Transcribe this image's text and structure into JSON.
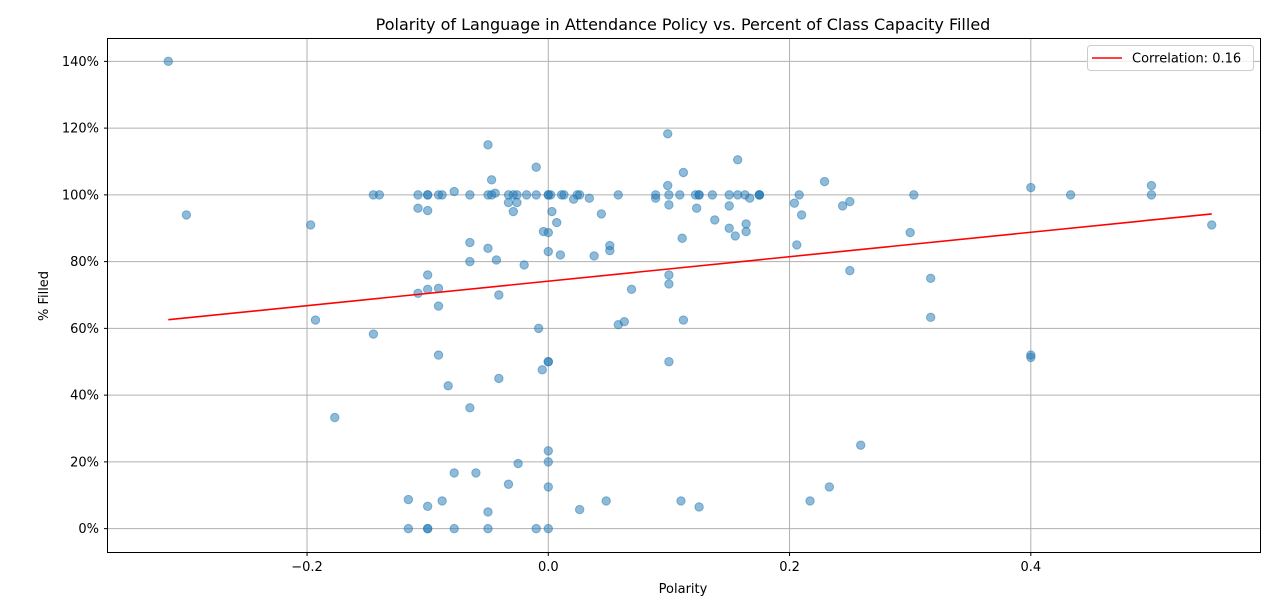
{
  "chart_data": {
    "type": "scatter",
    "title": "Polarity of Language in Attendance Policy vs. Percent of Class Capacity Filled",
    "xlabel": "Polarity",
    "ylabel": "% Filled",
    "xlim": [
      -0.365,
      0.59
    ],
    "ylim": [
      -0.07,
      1.467
    ],
    "x_ticks": [
      -0.2,
      0.0,
      0.2,
      0.4
    ],
    "x_tick_labels": [
      "−0.2",
      "0.0",
      "0.2",
      "0.4"
    ],
    "y_ticks": [
      0,
      0.2,
      0.4,
      0.6,
      0.8,
      1.0,
      1.2,
      1.4
    ],
    "y_tick_labels": [
      "0%",
      "20%",
      "40%",
      "60%",
      "80%",
      "100%",
      "120%",
      "140%"
    ],
    "grid": true,
    "legend": {
      "placement": "top-right",
      "entries": [
        {
          "label": "Correlation: 0.16",
          "color": "#ff0000",
          "kind": "line"
        }
      ]
    },
    "colors": {
      "points": "#1f77b4",
      "trend": "#ff0000"
    },
    "series": [
      {
        "kind": "points",
        "points": [
          [
            -0.315,
            1.4
          ],
          [
            -0.3,
            0.94
          ],
          [
            -0.197,
            0.91
          ],
          [
            -0.193,
            0.625
          ],
          [
            -0.177,
            0.333
          ],
          [
            -0.145,
            1.0
          ],
          [
            -0.145,
            0.583
          ],
          [
            -0.14,
            1.0
          ],
          [
            -0.116,
            0.087
          ],
          [
            -0.116,
            0.0
          ],
          [
            -0.108,
            1.0
          ],
          [
            -0.108,
            0.96
          ],
          [
            -0.108,
            0.705
          ],
          [
            -0.1,
            1.0
          ],
          [
            -0.1,
            1.0
          ],
          [
            -0.1,
            0.953
          ],
          [
            -0.1,
            0.76
          ],
          [
            -0.1,
            0.717
          ],
          [
            -0.1,
            0.067
          ],
          [
            -0.1,
            0.0
          ],
          [
            -0.1,
            0.0
          ],
          [
            -0.091,
            1.0
          ],
          [
            -0.091,
            0.72
          ],
          [
            -0.091,
            0.667
          ],
          [
            -0.091,
            0.52
          ],
          [
            -0.088,
            1.0
          ],
          [
            -0.088,
            0.083
          ],
          [
            -0.083,
            0.428
          ],
          [
            -0.078,
            1.01
          ],
          [
            -0.078,
            0.167
          ],
          [
            -0.078,
            0.0
          ],
          [
            -0.065,
            1.0
          ],
          [
            -0.065,
            0.857
          ],
          [
            -0.065,
            0.8
          ],
          [
            -0.065,
            0.362
          ],
          [
            -0.06,
            0.167
          ],
          [
            -0.05,
            1.15
          ],
          [
            -0.05,
            1.0
          ],
          [
            -0.05,
            0.84
          ],
          [
            -0.05,
            0.05
          ],
          [
            -0.05,
            0.0
          ],
          [
            -0.047,
            1.045
          ],
          [
            -0.047,
            1.0
          ],
          [
            -0.044,
            1.005
          ],
          [
            -0.043,
            0.805
          ],
          [
            -0.041,
            0.7
          ],
          [
            -0.041,
            0.45
          ],
          [
            -0.033,
            1.0
          ],
          [
            -0.033,
            0.977
          ],
          [
            -0.033,
            0.133
          ],
          [
            -0.029,
            1.0
          ],
          [
            -0.029,
            0.95
          ],
          [
            -0.026,
            1.0
          ],
          [
            -0.026,
            0.977
          ],
          [
            -0.025,
            0.195
          ],
          [
            -0.02,
            0.79
          ],
          [
            -0.018,
            1.0
          ],
          [
            -0.01,
            1.083
          ],
          [
            -0.01,
            1.0
          ],
          [
            -0.01,
            0.0
          ],
          [
            -0.008,
            0.6
          ],
          [
            -0.005,
            0.476
          ],
          [
            -0.004,
            0.89
          ],
          [
            0.0,
            1.0
          ],
          [
            0.0,
            1.0
          ],
          [
            0.0,
            0.887
          ],
          [
            0.0,
            0.83
          ],
          [
            0.0,
            0.5
          ],
          [
            0.0,
            0.5
          ],
          [
            0.0,
            0.233
          ],
          [
            0.0,
            0.2
          ],
          [
            0.0,
            0.125
          ],
          [
            0.0,
            0.0
          ],
          [
            0.002,
            1.0
          ],
          [
            0.003,
            0.95
          ],
          [
            0.007,
            0.917
          ],
          [
            0.01,
            0.82
          ],
          [
            0.011,
            1.0
          ],
          [
            0.013,
            1.0
          ],
          [
            0.021,
            0.987
          ],
          [
            0.024,
            1.0
          ],
          [
            0.026,
            1.0
          ],
          [
            0.026,
            0.057
          ],
          [
            0.034,
            0.99
          ],
          [
            0.038,
            0.817
          ],
          [
            0.044,
            0.943
          ],
          [
            0.048,
            0.083
          ],
          [
            0.051,
            0.848
          ],
          [
            0.051,
            0.833
          ],
          [
            0.058,
            1.0
          ],
          [
            0.058,
            0.611
          ],
          [
            0.063,
            0.62
          ],
          [
            0.069,
            0.717
          ],
          [
            0.089,
            1.0
          ],
          [
            0.089,
            0.99
          ],
          [
            0.099,
            1.183
          ],
          [
            0.099,
            1.028
          ],
          [
            0.1,
            1.0
          ],
          [
            0.1,
            0.97
          ],
          [
            0.1,
            0.76
          ],
          [
            0.1,
            0.733
          ],
          [
            0.1,
            0.5
          ],
          [
            0.109,
            1.0
          ],
          [
            0.11,
            0.083
          ],
          [
            0.111,
            0.87
          ],
          [
            0.112,
            1.067
          ],
          [
            0.112,
            0.625
          ],
          [
            0.122,
            1.0
          ],
          [
            0.123,
            0.96
          ],
          [
            0.125,
            1.0
          ],
          [
            0.125,
            1.0
          ],
          [
            0.125,
            0.065
          ],
          [
            0.136,
            1.0
          ],
          [
            0.138,
            0.925
          ],
          [
            0.15,
            1.0
          ],
          [
            0.15,
            0.967
          ],
          [
            0.15,
            0.9
          ],
          [
            0.155,
            0.877
          ],
          [
            0.157,
            1.105
          ],
          [
            0.157,
            1.0
          ],
          [
            0.163,
            1.0
          ],
          [
            0.164,
            0.913
          ],
          [
            0.164,
            0.89
          ],
          [
            0.167,
            0.99
          ],
          [
            0.175,
            1.0
          ],
          [
            0.175,
            1.0
          ],
          [
            0.175,
            1.0
          ],
          [
            0.204,
            0.975
          ],
          [
            0.206,
            0.85
          ],
          [
            0.208,
            1.0
          ],
          [
            0.21,
            0.94
          ],
          [
            0.217,
            0.083
          ],
          [
            0.229,
            1.04
          ],
          [
            0.233,
            0.125
          ],
          [
            0.244,
            0.967
          ],
          [
            0.25,
            0.98
          ],
          [
            0.25,
            0.773
          ],
          [
            0.259,
            0.25
          ],
          [
            0.3,
            0.887
          ],
          [
            0.303,
            1.0
          ],
          [
            0.317,
            0.75
          ],
          [
            0.317,
            0.633
          ],
          [
            0.4,
            1.022
          ],
          [
            0.4,
            0.52
          ],
          [
            0.4,
            0.513
          ],
          [
            0.433,
            1.0
          ],
          [
            0.5,
            1.028
          ],
          [
            0.5,
            1.0
          ],
          [
            0.55,
            0.91
          ]
        ]
      },
      {
        "kind": "trend",
        "name": "Correlation: 0.16",
        "x": [
          -0.315,
          0.55
        ],
        "y": [
          0.626,
          0.943
        ]
      }
    ]
  }
}
